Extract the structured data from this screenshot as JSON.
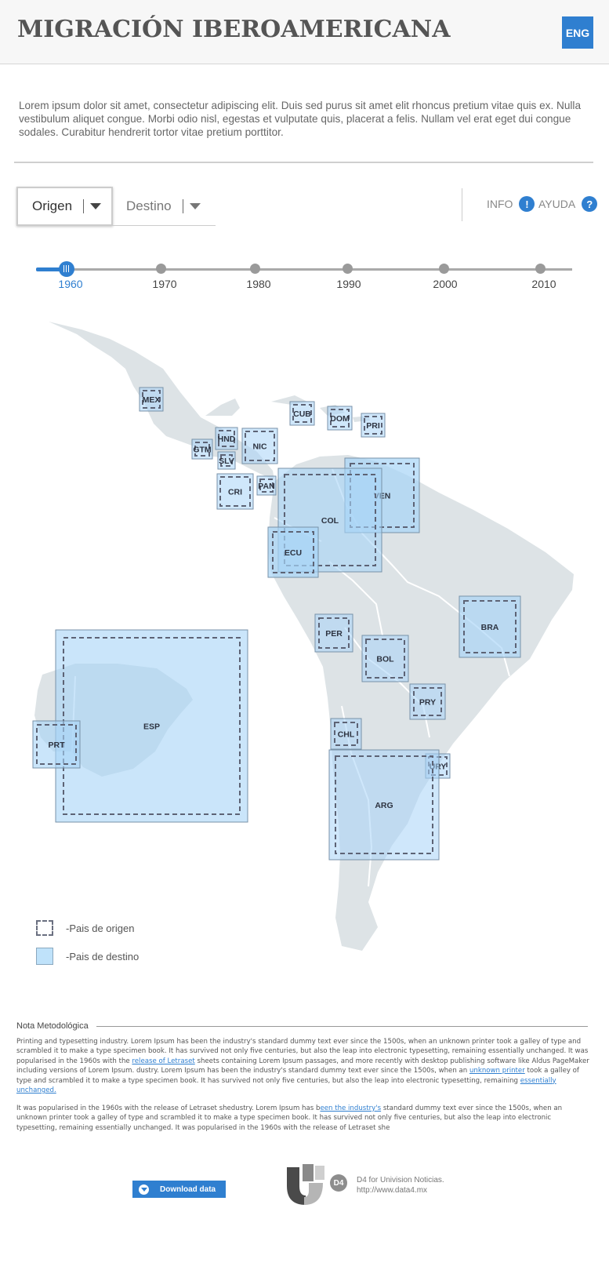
{
  "header": {
    "title": "MIGRACIÓN IBEROAMERICANA",
    "lang_button": "ENG"
  },
  "intro": "Lorem ipsum dolor sit amet, consectetur adipiscing elit. Duis sed purus sit amet elit rhoncus pretium vitae quis ex. Nulla vestibulum aliquet congue. Morbi odio nisl, egestas et vulputate quis, placerat a felis. Nullam vel erat eget dui congue sodales. Curabitur hendrerit tortor vitae pretium porttitor.",
  "controls": {
    "origen_label": "Origen",
    "destino_label": "Destino",
    "info_label": "INFO",
    "ayuda_label": "AYUDA",
    "info_icon": "!",
    "ayuda_icon": "?"
  },
  "timeline": {
    "years": [
      "1960",
      "1970",
      "1980",
      "1990",
      "2000",
      "2010"
    ],
    "selected": "1960"
  },
  "map": {
    "countries": [
      "MEX",
      "CUB",
      "DOM",
      "PRI",
      "HND",
      "GTM",
      "NIC",
      "SLV",
      "CRI",
      "PAN",
      "VEN",
      "COL",
      "ECU",
      "BRA",
      "PER",
      "BOL",
      "ESP",
      "PRY",
      "PRT",
      "CHL",
      "URY",
      "ARG"
    ]
  },
  "legend": {
    "origin": "-Pais de origen",
    "destination": "-Pais de destino"
  },
  "nota": {
    "title": "Nota Metodológica",
    "p1_a": "Printing and typesetting industry. Lorem Ipsum has been the industry's standard dummy text ever since the 1500s, when an unknown printer took a galley of type and scrambled it to make a type specimen book. It has survived not only five centuries, but also the leap into electronic typesetting, remaining essentially unchanged. It was popularised in the 1960s with the ",
    "p1_link1": "release of Letraset",
    "p1_b": " sheets containing Lorem Ipsum passages, and more recently with desktop publishing software like Aldus PageMaker including versions of Lorem Ipsum. dustry. Lorem Ipsum has been the industry's standard dummy text ever since the 1500s, when an ",
    "p1_link2": "unknown printer",
    "p1_c": " took a galley of type and scrambled it to make a type specimen book. It has survived not only five centuries, but also the leap into electronic typesetting, remaining ",
    "p1_link3": "essentially unchanged.",
    "p2_a": "It was popularised in the 1960s with the release of Letraset shedustry. Lorem Ipsum has b",
    "p2_link": "een the industry's",
    "p2_b": " standard dummy text ever since the 1500s, when an unknown printer took a galley of type and scrambled it to make a type specimen book. It has survived not only five centuries, but also the leap into electronic typesetting, remaining essentially unchanged. It was popularised in the 1960s with the release of Letraset she"
  },
  "footer": {
    "download_label": "Download data",
    "badge": "D4",
    "credit_line1": "D4 for Univision Noticias.",
    "credit_line2": "http://www.data4.mx"
  },
  "colors": {
    "accent": "#2f7fd0",
    "land": "#dde3e6",
    "destination_fill": "#bfe2fa",
    "origin_border": "#5d6375"
  }
}
